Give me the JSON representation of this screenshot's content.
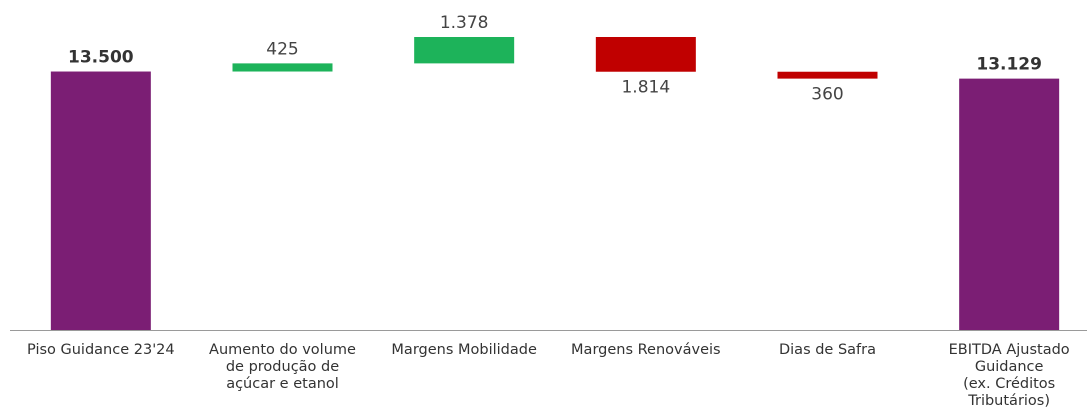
{
  "chart_data": {
    "type": "waterfall",
    "categories": [
      "Piso Guidance 23'24",
      "Aumento do volume\nde produção de\naçúcar e etanol",
      "Margens Mobilidade",
      "Margens Renováveis",
      "Dias de Safra",
      "EBITDA Ajustado\nGuidance\n(ex. Créditos\nTributários)"
    ],
    "values": [
      13500,
      425,
      1378,
      -1814,
      -360,
      13129
    ],
    "value_labels": [
      "13.500",
      "425",
      "1.378",
      "1.814",
      "360",
      "13.129"
    ],
    "colors": {
      "total": "#7b1e74",
      "increase": "#1db35a",
      "decrease": "#c00000"
    }
  }
}
